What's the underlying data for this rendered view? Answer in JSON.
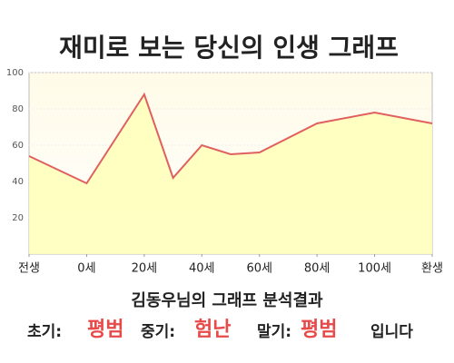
{
  "chart_data": {
    "type": "area",
    "title": "재미로 보는 당신의 인생 그래프",
    "x": [
      -20,
      0,
      20,
      30,
      40,
      50,
      60,
      80,
      100,
      120
    ],
    "series": [
      {
        "color": "#e06060",
        "values": [
          54,
          39,
          88,
          42,
          60,
          55,
          56,
          72,
          78,
          72
        ]
      }
    ],
    "xlim": [
      -20,
      120
    ],
    "xticks": [
      {
        "value": -20,
        "label": "전생"
      },
      {
        "value": 0,
        "label": "0세"
      },
      {
        "value": 20,
        "label": "20세"
      },
      {
        "value": 40,
        "label": "40세"
      },
      {
        "value": 60,
        "label": "60세"
      },
      {
        "value": 80,
        "label": "80세"
      },
      {
        "value": 100,
        "label": "100세"
      },
      {
        "value": 120,
        "label": "환생"
      }
    ],
    "ylim": [
      0,
      100
    ],
    "yticks": [
      20,
      40,
      60,
      80,
      100
    ],
    "grid": true
  },
  "analysis": {
    "heading": "김동우님의 그래프 분석결과",
    "parts": [
      "초기:",
      "평범",
      "중기:",
      "험난",
      "말기:",
      "평범",
      "입니다"
    ]
  }
}
